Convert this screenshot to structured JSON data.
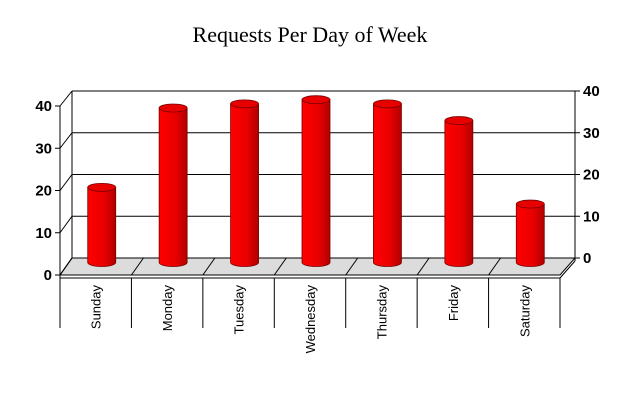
{
  "chart_data": {
    "type": "bar",
    "style": "3d-cylinder",
    "title": "Requests Per Day of Week",
    "xlabel": "",
    "ylabel": "",
    "categories": [
      "Sunday",
      "Monday",
      "Tuesday",
      "Wednesday",
      "Thursday",
      "Friday",
      "Saturday"
    ],
    "values": [
      18,
      37,
      38,
      39,
      38,
      34,
      14
    ],
    "ylim": [
      0,
      40
    ],
    "yticks": [
      "0",
      "10",
      "20",
      "30",
      "40"
    ],
    "grid": true,
    "legend": "none",
    "colors": {
      "bar": "#e00000",
      "floor": "#dcdcdc"
    }
  }
}
